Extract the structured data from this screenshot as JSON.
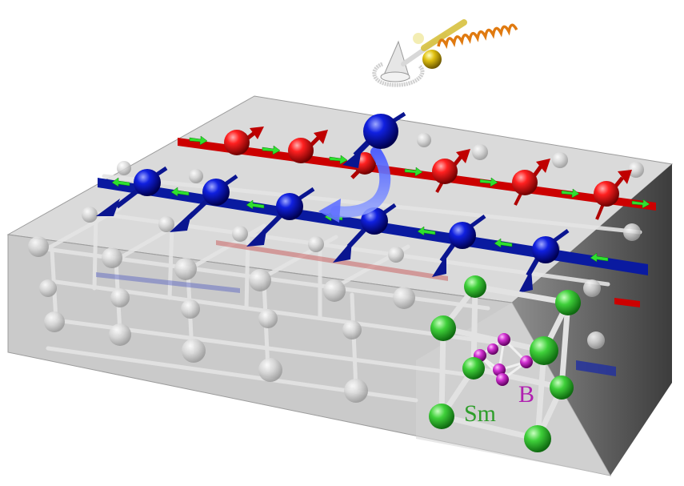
{
  "labels": {
    "samarium": "Sm",
    "boron": "B"
  },
  "colors": {
    "slab_top": "#cfcfcf",
    "slab_front": "#b4b4b4",
    "slab_side": "#8a8a8a",
    "red_chain": "#d40000",
    "blue_chain": "#0a1aa8",
    "green_arrow": "#22dd22",
    "sm_atom": "#3fc43f",
    "b_atom": "#c030c0",
    "photon_spring": "#e07a10",
    "lattice": "#d9d9d9"
  },
  "icons": {
    "incoming_spin": "spinning-top-with-spring-icon",
    "scatter_arrow": "curved-blue-arrow-icon"
  }
}
